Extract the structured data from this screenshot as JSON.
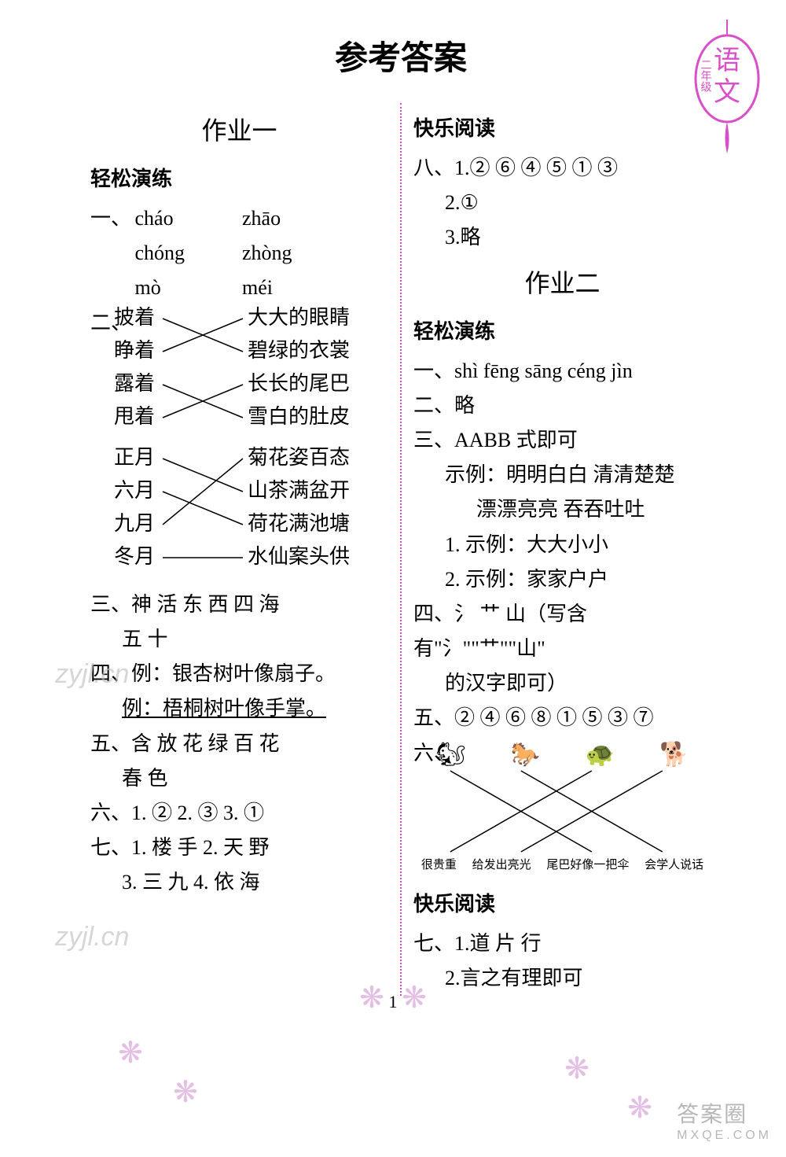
{
  "title": "参考答案",
  "badge": {
    "top_char": "语",
    "bottom_char": "文",
    "grade": "二年级",
    "color": "#d94fc9"
  },
  "page_number": "1",
  "watermarks": [
    "zyjl.cn",
    "zyjl.cn"
  ],
  "corner_brand": {
    "main": "答案圈",
    "sub": "MXQE.COM"
  },
  "decoration": {
    "glyph": "❋",
    "color": "#d9a4d9"
  },
  "divider_color": "#c94fc9",
  "left": {
    "homework_title": "作业一",
    "sec1_title": "轻松演练",
    "q1_label": "一、",
    "q1_pinyin": [
      [
        "cháo",
        "zhāo"
      ],
      [
        "chóng",
        "zhòng"
      ],
      [
        "mò",
        "méi"
      ]
    ],
    "q2_label": "二、",
    "q2_match1": {
      "left": [
        "披着",
        "睁着",
        "露着",
        "甩着"
      ],
      "right": [
        "大大的眼睛",
        "碧绿的衣裳",
        "长长的尾巴",
        "雪白的肚皮"
      ],
      "edges": [
        [
          0,
          1
        ],
        [
          1,
          0
        ],
        [
          2,
          3
        ],
        [
          3,
          2
        ]
      ]
    },
    "q2_match2": {
      "left": [
        "正月",
        "六月",
        "九月",
        "冬月"
      ],
      "right": [
        "菊花姿百态",
        "山茶满盆开",
        "荷花满池塘",
        "水仙案头供"
      ],
      "edges": [
        [
          0,
          1
        ],
        [
          1,
          2
        ],
        [
          2,
          0
        ],
        [
          3,
          3
        ]
      ]
    },
    "q3": "三、神 活 东 西 四 海",
    "q3b": "五 十",
    "q4": "四、例：银杏树叶像扇子。",
    "q4b": "例：梧桐树叶像手掌。",
    "q5": "五、含 放 花 绿 百 花",
    "q5b": "春 色",
    "q6": "六、1. ②  2. ③  3. ①",
    "q7": "七、1. 楼 手  2. 天 野",
    "q7b": "3. 三 九  4. 依 海"
  },
  "right": {
    "sec2_title": "快乐阅读",
    "q8a": "八、1.② ⑥ ④ ⑤ ① ③",
    "q8b": "2.①",
    "q8c": "3.略",
    "homework_title": "作业二",
    "sec1_title": "轻松演练",
    "q1": "一、shì fēng sāng céng jìn",
    "q2": "二、略",
    "q3a": "三、AABB 式即可",
    "q3b": "示例：明明白白 清清楚楚",
    "q3c": "漂漂亮亮 吞吞吐吐",
    "q3d": "1. 示例：大大小小",
    "q3e": "2. 示例：家家户户",
    "q4a": "四、氵 艹 山（写含有\"氵\"\"艹\"\"山\"",
    "q4b": "的汉字即可）",
    "q5": "五、② ④ ⑥ ⑧ ① ⑤ ③ ⑦",
    "q6_label": "六、",
    "q6_animals": [
      "🐿",
      "🐎",
      "🐢",
      "🐕"
    ],
    "q6_labels": [
      "很贵重",
      "给发出亮光",
      "尾巴好像一把伞",
      "会学人说话"
    ],
    "q6_edges": [
      [
        0,
        2
      ],
      [
        1,
        3
      ],
      [
        2,
        0
      ],
      [
        3,
        1
      ]
    ],
    "sec3_title": "快乐阅读",
    "q7a": "七、1.道 片 行",
    "q7b": "2.言之有理即可"
  },
  "colors": {
    "text": "#000000",
    "accent": "#d94fc9"
  }
}
